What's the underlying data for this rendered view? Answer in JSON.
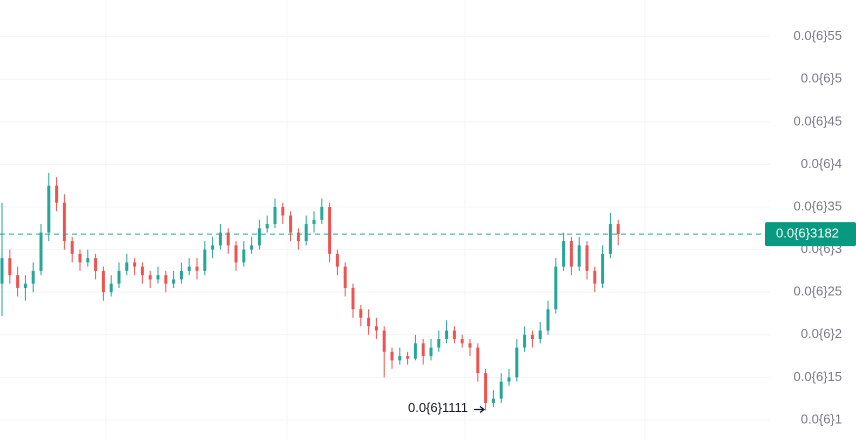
{
  "chart_data": {
    "type": "candlestick",
    "up_color": "#26a69a",
    "down_color": "#ef5350",
    "grid": true,
    "ylim": [
      7.65e-08,
      5.93e-07
    ],
    "yticks": [
      {
        "value": 1e-07,
        "label": "0.0{6}1"
      },
      {
        "value": 1.5e-07,
        "label": "0.0{6}15"
      },
      {
        "value": 2e-07,
        "label": "0.0{6}2"
      },
      {
        "value": 2.5e-07,
        "label": "0.0{6}25"
      },
      {
        "value": 3e-07,
        "label": "0.0{6}3"
      },
      {
        "value": 3.5e-07,
        "label": "0.0{6}35"
      },
      {
        "value": 4e-07,
        "label": "0.0{6}4"
      },
      {
        "value": 4.5e-07,
        "label": "0.0{6}45"
      },
      {
        "value": 5e-07,
        "label": "0.0{6}5"
      },
      {
        "value": 5.5e-07,
        "label": "0.0{6}55"
      }
    ],
    "last_price": {
      "value": 3.182e-07,
      "label": "0.0{6}3182"
    },
    "low_marker": {
      "value": 1.111e-07,
      "label": "0.0{6}1111"
    },
    "open": [
      2.6e-07,
      2.9e-07,
      2.7e-07,
      2.55e-07,
      2.6e-07,
      2.75e-07,
      3.2e-07,
      3.75e-07,
      3.55e-07,
      3.1e-07,
      2.95e-07,
      2.85e-07,
      2.9e-07,
      2.75e-07,
      2.5e-07,
      2.6e-07,
      2.75e-07,
      2.85e-07,
      2.8e-07,
      2.7e-07,
      2.65e-07,
      2.7e-07,
      2.6e-07,
      2.65e-07,
      2.75e-07,
      2.8e-07,
      2.75e-07,
      3e-07,
      3.05e-07,
      3.2e-07,
      3.05e-07,
      2.85e-07,
      3e-07,
      3.05e-07,
      3.25e-07,
      3.3e-07,
      3.5e-07,
      3.4e-07,
      3.2e-07,
      3.1e-07,
      3.3e-07,
      3.35e-07,
      3.5e-07,
      2.95e-07,
      2.8e-07,
      2.55e-07,
      2.3e-07,
      2.2e-07,
      2.1e-07,
      2.05e-07,
      1.8e-07,
      1.7e-07,
      1.75e-07,
      1.72e-07,
      1.9e-07,
      1.75e-07,
      1.85e-07,
      1.95e-07,
      2.05e-07,
      1.95e-07,
      1.9e-07,
      1.85e-07,
      1.55e-07,
      1.2e-07,
      1.25e-07,
      1.45e-07,
      1.5e-07,
      1.85e-07,
      2e-07,
      1.95e-07,
      2.05e-07,
      2.3e-07,
      2.8e-07,
      3.1e-07,
      2.8e-07,
      3.05e-07,
      2.75e-07,
      2.6e-07,
      2.95e-07,
      3.3e-07
    ],
    "high": [
      3.55e-07,
      3e-07,
      2.8e-07,
      2.7e-07,
      2.85e-07,
      3.3e-07,
      3.9e-07,
      3.85e-07,
      3.65e-07,
      3.15e-07,
      3e-07,
      3e-07,
      2.95e-07,
      2.8e-07,
      2.7e-07,
      2.85e-07,
      2.95e-07,
      2.9e-07,
      2.85e-07,
      2.75e-07,
      2.8e-07,
      2.75e-07,
      2.75e-07,
      2.85e-07,
      2.9e-07,
      2.9e-07,
      3.1e-07,
      3.15e-07,
      3.3e-07,
      3.25e-07,
      3.1e-07,
      3.1e-07,
      3.15e-07,
      3.35e-07,
      3.4e-07,
      3.6e-07,
      3.55e-07,
      3.45e-07,
      3.25e-07,
      3.4e-07,
      3.45e-07,
      3.6e-07,
      3.55e-07,
      3e-07,
      2.85e-07,
      2.6e-07,
      2.35e-07,
      2.3e-07,
      2.2e-07,
      2.1e-07,
      1.85e-07,
      1.85e-07,
      1.8e-07,
      2e-07,
      1.95e-07,
      1.95e-07,
      2.05e-07,
      2.17e-07,
      2.1e-07,
      2e-07,
      1.95e-07,
      1.9e-07,
      1.6e-07,
      1.35e-07,
      1.55e-07,
      1.6e-07,
      1.95e-07,
      2.1e-07,
      2.05e-07,
      2.15e-07,
      2.4e-07,
      2.9e-07,
      3.2e-07,
      3.15e-07,
      3.15e-07,
      3.1e-07,
      2.8e-07,
      3.05e-07,
      3.43e-07,
      3.35e-07
    ],
    "low": [
      2.22e-07,
      2.6e-07,
      2.45e-07,
      2.4e-07,
      2.5e-07,
      2.7e-07,
      3.1e-07,
      3.45e-07,
      3e-07,
      2.85e-07,
      2.75e-07,
      2.8e-07,
      2.65e-07,
      2.4e-07,
      2.45e-07,
      2.55e-07,
      2.7e-07,
      2.7e-07,
      2.6e-07,
      2.55e-07,
      2.6e-07,
      2.5e-07,
      2.55e-07,
      2.6e-07,
      2.7e-07,
      2.65e-07,
      2.7e-07,
      2.9e-07,
      3e-07,
      2.95e-07,
      2.75e-07,
      2.8e-07,
      2.95e-07,
      3e-07,
      3.2e-07,
      3.25e-07,
      3.3e-07,
      3.1e-07,
      3e-07,
      3.05e-07,
      3.2e-07,
      3.3e-07,
      2.85e-07,
      2.7e-07,
      2.45e-07,
      2.2e-07,
      2.1e-07,
      2e-07,
      1.95e-07,
      1.5e-07,
      1.6e-07,
      1.65e-07,
      1.65e-07,
      1.7e-07,
      1.65e-07,
      1.7e-07,
      1.8e-07,
      1.9e-07,
      1.9e-07,
      1.85e-07,
      1.75e-07,
      1.45e-07,
      1.111e-07,
      1.15e-07,
      1.2e-07,
      1.4e-07,
      1.45e-07,
      1.8e-07,
      1.85e-07,
      1.9e-07,
      2e-07,
      2.25e-07,
      2.75e-07,
      2.7e-07,
      2.75e-07,
      2.65e-07,
      2.5e-07,
      2.55e-07,
      2.9e-07,
      3.05e-07
    ],
    "close": [
      2.9e-07,
      2.7e-07,
      2.55e-07,
      2.6e-07,
      2.75e-07,
      3.2e-07,
      3.75e-07,
      3.55e-07,
      3.1e-07,
      2.95e-07,
      2.85e-07,
      2.9e-07,
      2.75e-07,
      2.5e-07,
      2.6e-07,
      2.75e-07,
      2.85e-07,
      2.8e-07,
      2.7e-07,
      2.65e-07,
      2.7e-07,
      2.6e-07,
      2.65e-07,
      2.75e-07,
      2.8e-07,
      2.75e-07,
      3e-07,
      3.05e-07,
      3.2e-07,
      3.05e-07,
      2.85e-07,
      3e-07,
      3.05e-07,
      3.25e-07,
      3.3e-07,
      3.5e-07,
      3.4e-07,
      3.2e-07,
      3.1e-07,
      3.3e-07,
      3.35e-07,
      3.5e-07,
      2.95e-07,
      2.8e-07,
      2.55e-07,
      2.3e-07,
      2.2e-07,
      2.1e-07,
      2.05e-07,
      1.8e-07,
      1.7e-07,
      1.75e-07,
      1.72e-07,
      1.9e-07,
      1.75e-07,
      1.85e-07,
      1.95e-07,
      2.05e-07,
      1.95e-07,
      1.9e-07,
      1.85e-07,
      1.55e-07,
      1.2e-07,
      1.25e-07,
      1.45e-07,
      1.5e-07,
      1.85e-07,
      2e-07,
      1.95e-07,
      2.05e-07,
      2.3e-07,
      2.8e-07,
      3.1e-07,
      2.8e-07,
      3.05e-07,
      2.75e-07,
      2.6e-07,
      2.95e-07,
      3.3e-07,
      3.182e-07
    ]
  }
}
